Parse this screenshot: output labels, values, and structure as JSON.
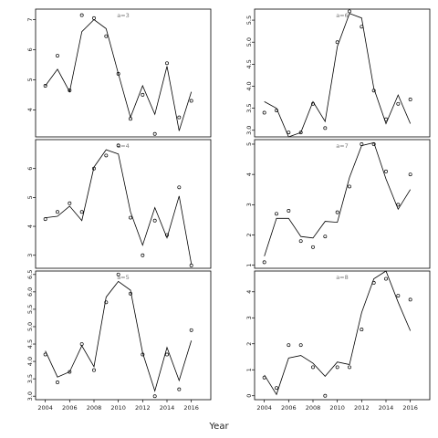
{
  "chart_data": {
    "type": "line",
    "xlabel": "Year",
    "panels": [
      {
        "label": "a=3",
        "x": [
          2004,
          2005,
          2006,
          2007,
          2008,
          2009,
          2010,
          2011,
          2012,
          2013,
          2014,
          2015,
          2016
        ],
        "points": [
          4.8,
          5.8,
          4.65,
          7.15,
          7.05,
          6.45,
          5.2,
          3.7,
          4.5,
          3.2,
          5.55,
          3.75,
          4.3
        ],
        "fitted": [
          4.8,
          5.35,
          4.6,
          6.6,
          7.0,
          6.7,
          5.2,
          3.75,
          4.8,
          3.85,
          5.45,
          3.3,
          4.6
        ],
        "ylim": [
          3.1,
          7.35
        ],
        "yticks": [
          4,
          5,
          6,
          7
        ],
        "ytick_labels": [
          "4",
          "5",
          "6",
          "7"
        ]
      },
      {
        "label": "a=6",
        "x": [
          2004,
          2005,
          2006,
          2007,
          2008,
          2009,
          2010,
          2011,
          2012,
          2013,
          2014,
          2015,
          2016
        ],
        "points": [
          3.4,
          3.45,
          2.95,
          2.95,
          3.6,
          3.05,
          5.0,
          5.7,
          5.35,
          3.9,
          3.25,
          3.6,
          3.7
        ],
        "fitted": [
          3.65,
          3.5,
          2.85,
          2.95,
          3.65,
          3.2,
          4.9,
          5.65,
          5.55,
          3.95,
          3.15,
          3.8,
          3.15
        ],
        "ylim": [
          2.85,
          5.75
        ],
        "yticks": [
          3.0,
          3.5,
          4.0,
          4.5,
          5.0,
          5.5
        ],
        "ytick_labels": [
          "3.0",
          "3.5",
          "4.0",
          "4.5",
          "5.0",
          "5.5"
        ]
      },
      {
        "label": "a=4",
        "x": [
          2004,
          2005,
          2006,
          2007,
          2008,
          2009,
          2010,
          2011,
          2012,
          2013,
          2014,
          2015,
          2016
        ],
        "points": [
          4.25,
          4.5,
          4.8,
          4.5,
          6.0,
          6.45,
          6.8,
          4.3,
          3.0,
          4.2,
          3.7,
          5.35,
          2.65
        ],
        "fitted": [
          4.3,
          4.35,
          4.7,
          4.2,
          6.05,
          6.65,
          6.5,
          4.5,
          3.35,
          4.65,
          3.6,
          5.05,
          2.7
        ],
        "ylim": [
          2.55,
          7.0
        ],
        "yticks": [
          3,
          4,
          5,
          6
        ],
        "ytick_labels": [
          "3",
          "4",
          "5",
          "6"
        ]
      },
      {
        "label": "a=7",
        "x": [
          2004,
          2005,
          2006,
          2007,
          2008,
          2009,
          2010,
          2011,
          2012,
          2013,
          2014,
          2015,
          2016
        ],
        "points": [
          1.1,
          2.7,
          2.8,
          1.8,
          1.6,
          1.95,
          2.75,
          3.6,
          5.0,
          5.0,
          4.1,
          3.0,
          4.0
        ],
        "fitted": [
          1.3,
          2.55,
          2.55,
          1.95,
          1.9,
          2.45,
          2.42,
          3.9,
          4.95,
          5.05,
          3.85,
          2.85,
          3.5
        ],
        "ylim": [
          0.9,
          5.15
        ],
        "yticks": [
          1,
          2,
          3,
          4,
          5
        ],
        "ytick_labels": [
          "1",
          "2",
          "3",
          "4",
          "5"
        ]
      },
      {
        "label": "a=5",
        "x": [
          2004,
          2005,
          2006,
          2007,
          2008,
          2009,
          2010,
          2011,
          2012,
          2013,
          2014,
          2015,
          2016
        ],
        "points": [
          4.2,
          3.4,
          3.7,
          4.5,
          3.75,
          5.7,
          6.5,
          5.95,
          4.2,
          3.0,
          4.2,
          3.2,
          4.9
        ],
        "fitted": [
          4.3,
          3.55,
          3.7,
          4.45,
          3.85,
          5.85,
          6.3,
          6.05,
          4.25,
          3.15,
          4.4,
          3.45,
          4.6
        ],
        "ylim": [
          2.9,
          6.6
        ],
        "yticks": [
          3.0,
          3.5,
          4.0,
          4.5,
          5.0,
          5.5,
          6.0,
          6.5
        ],
        "ytick_labels": [
          "3.0",
          "3.5",
          "4.0",
          "4.5",
          "5.0",
          "5.5",
          "6.0",
          "6.5"
        ]
      },
      {
        "label": "a=8",
        "x": [
          2004,
          2005,
          2006,
          2007,
          2008,
          2009,
          2010,
          2011,
          2012,
          2013,
          2014,
          2015,
          2016
        ],
        "points": [
          0.7,
          0.3,
          1.95,
          1.95,
          1.1,
          0.0,
          1.1,
          1.1,
          2.55,
          4.35,
          4.5,
          3.85,
          3.7
        ],
        "fitted": [
          0.8,
          0.05,
          1.45,
          1.55,
          1.25,
          0.75,
          1.3,
          1.2,
          3.2,
          4.5,
          4.8,
          3.6,
          2.5
        ],
        "ylim": [
          -0.15,
          4.8
        ],
        "yticks": [
          0,
          1,
          2,
          3,
          4
        ],
        "ytick_labels": [
          "0",
          "1",
          "2",
          "3",
          "4"
        ]
      }
    ],
    "xticks": [
      2004,
      2006,
      2008,
      2010,
      2012,
      2014,
      2016
    ],
    "xtick_labels": [
      "2004",
      "2006",
      "2008",
      "2010",
      "2012",
      "2014",
      "2016"
    ],
    "xlim": [
      2003.2,
      2017.6
    ],
    "grid": false,
    "legend": "none"
  }
}
